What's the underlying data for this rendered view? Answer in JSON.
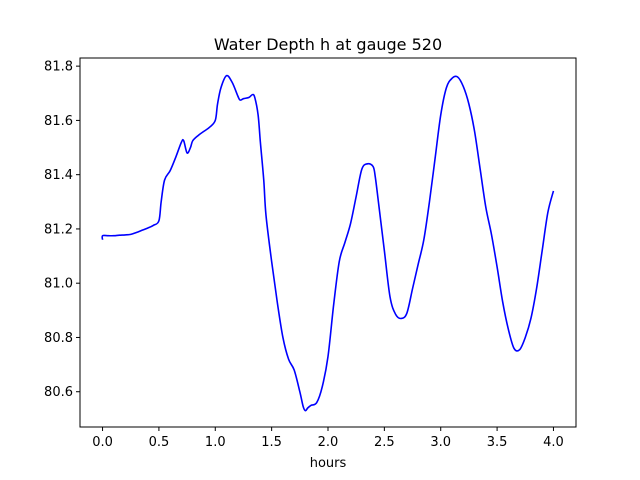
{
  "chart_data": {
    "type": "line",
    "title": "Water Depth h at gauge 520",
    "xlabel": "hours",
    "ylabel": "",
    "xlim": [
      -0.2,
      4.2
    ],
    "ylim": [
      80.47,
      81.83
    ],
    "xticks": [
      0.0,
      0.5,
      1.0,
      1.5,
      2.0,
      2.5,
      3.0,
      3.5,
      4.0
    ],
    "xtick_labels": [
      "0.0",
      "0.5",
      "1.0",
      "1.5",
      "2.0",
      "2.5",
      "3.0",
      "3.5",
      "4.0"
    ],
    "yticks": [
      80.6,
      80.8,
      81.0,
      81.2,
      81.4,
      81.6,
      81.8
    ],
    "ytick_labels": [
      "80.6",
      "80.8",
      "81.0",
      "81.2",
      "81.4",
      "81.6",
      "81.8"
    ],
    "grid": false,
    "series": [
      {
        "color": "#0000ff",
        "x": [
          0.0,
          0.0,
          0.05,
          0.1,
          0.15,
          0.2,
          0.25,
          0.3,
          0.35,
          0.4,
          0.45,
          0.5,
          0.52,
          0.55,
          0.6,
          0.65,
          0.7,
          0.72,
          0.75,
          0.78,
          0.8,
          0.85,
          0.9,
          0.95,
          1.0,
          1.02,
          1.05,
          1.1,
          1.15,
          1.2,
          1.22,
          1.25,
          1.3,
          1.33,
          1.35,
          1.38,
          1.4,
          1.43,
          1.45,
          1.5,
          1.55,
          1.6,
          1.65,
          1.7,
          1.75,
          1.78,
          1.8,
          1.82,
          1.85,
          1.9,
          1.95,
          2.0,
          2.05,
          2.1,
          2.15,
          2.2,
          2.25,
          2.3,
          2.35,
          2.4,
          2.42,
          2.45,
          2.5,
          2.55,
          2.6,
          2.65,
          2.7,
          2.75,
          2.8,
          2.85,
          2.9,
          2.95,
          3.0,
          3.05,
          3.1,
          3.15,
          3.2,
          3.25,
          3.3,
          3.35,
          3.4,
          3.45,
          3.5,
          3.55,
          3.6,
          3.65,
          3.7,
          3.75,
          3.8,
          3.85,
          3.9,
          3.95,
          4.0
        ],
        "y": [
          81.16,
          81.175,
          81.175,
          81.175,
          81.177,
          81.178,
          81.18,
          81.187,
          81.195,
          81.203,
          81.213,
          81.23,
          81.3,
          81.38,
          81.415,
          81.465,
          81.52,
          81.525,
          81.48,
          81.5,
          81.525,
          81.545,
          81.56,
          81.575,
          81.6,
          81.66,
          81.72,
          81.765,
          81.74,
          81.69,
          81.675,
          81.68,
          81.685,
          81.695,
          81.685,
          81.62,
          81.52,
          81.38,
          81.25,
          81.08,
          80.93,
          80.8,
          80.72,
          80.68,
          80.6,
          80.545,
          80.53,
          80.54,
          80.55,
          80.56,
          80.62,
          80.73,
          80.92,
          81.08,
          81.15,
          81.22,
          81.32,
          81.42,
          81.44,
          81.43,
          81.39,
          81.29,
          81.12,
          80.95,
          80.885,
          80.87,
          80.89,
          80.98,
          81.07,
          81.16,
          81.3,
          81.46,
          81.62,
          81.72,
          81.755,
          81.76,
          81.725,
          81.66,
          81.56,
          81.42,
          81.28,
          81.18,
          81.06,
          80.93,
          80.83,
          80.76,
          80.755,
          80.8,
          80.87,
          80.98,
          81.12,
          81.26,
          81.34
        ]
      }
    ]
  }
}
